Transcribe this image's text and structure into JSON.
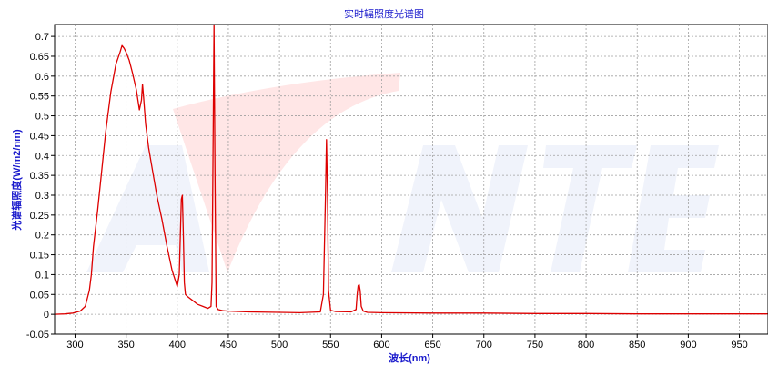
{
  "chart_data": {
    "type": "line",
    "title": "实时辐照度光谱图",
    "xlabel": "波长(nm)",
    "ylabel": "光谱辐照度(W/m2/nm)",
    "xlim": [
      280,
      978
    ],
    "ylim": [
      -0.05,
      0.73
    ],
    "x_ticks": [
      300,
      350,
      400,
      450,
      500,
      550,
      600,
      650,
      700,
      750,
      800,
      850,
      900,
      950
    ],
    "y_ticks": [
      -0.05,
      0,
      0.05,
      0.1,
      0.15,
      0.2,
      0.25,
      0.3,
      0.35,
      0.4,
      0.45,
      0.5,
      0.55,
      0.6,
      0.65,
      0.7
    ],
    "grid": true,
    "series": [
      {
        "color": "#dd0000",
        "x": [
          280,
          290,
          298,
          305,
          310,
          314,
          316,
          318,
          322,
          326,
          330,
          335,
          340,
          344,
          346,
          348,
          350,
          353,
          356,
          360,
          363,
          365,
          366,
          367,
          369,
          372,
          376,
          380,
          385,
          390,
          395,
          400,
          402,
          403,
          404,
          405,
          406,
          407,
          408,
          410,
          415,
          420,
          425,
          430,
          433,
          434,
          435,
          436,
          437,
          438,
          440,
          445,
          450,
          470,
          500,
          520,
          540,
          543,
          545,
          546,
          547,
          548,
          550,
          555,
          570,
          575,
          576,
          577,
          578,
          579,
          580,
          582,
          586,
          600,
          650,
          700,
          750,
          800,
          850,
          900,
          950,
          978
        ],
        "y": [
          0,
          0.001,
          0.003,
          0.008,
          0.02,
          0.06,
          0.1,
          0.17,
          0.26,
          0.36,
          0.46,
          0.56,
          0.63,
          0.66,
          0.677,
          0.67,
          0.66,
          0.64,
          0.61,
          0.565,
          0.515,
          0.54,
          0.58,
          0.55,
          0.48,
          0.42,
          0.36,
          0.3,
          0.24,
          0.17,
          0.11,
          0.07,
          0.1,
          0.2,
          0.29,
          0.3,
          0.2,
          0.08,
          0.05,
          0.045,
          0.035,
          0.025,
          0.02,
          0.015,
          0.02,
          0.08,
          0.4,
          0.73,
          0.35,
          0.02,
          0.012,
          0.009,
          0.008,
          0.006,
          0.005,
          0.004,
          0.006,
          0.05,
          0.3,
          0.44,
          0.3,
          0.06,
          0.01,
          0.007,
          0.006,
          0.012,
          0.05,
          0.072,
          0.075,
          0.06,
          0.02,
          0.008,
          0.005,
          0.004,
          0.003,
          0.003,
          0.002,
          0.002,
          0.001,
          0.001,
          0.001,
          0.001
        ]
      }
    ]
  }
}
